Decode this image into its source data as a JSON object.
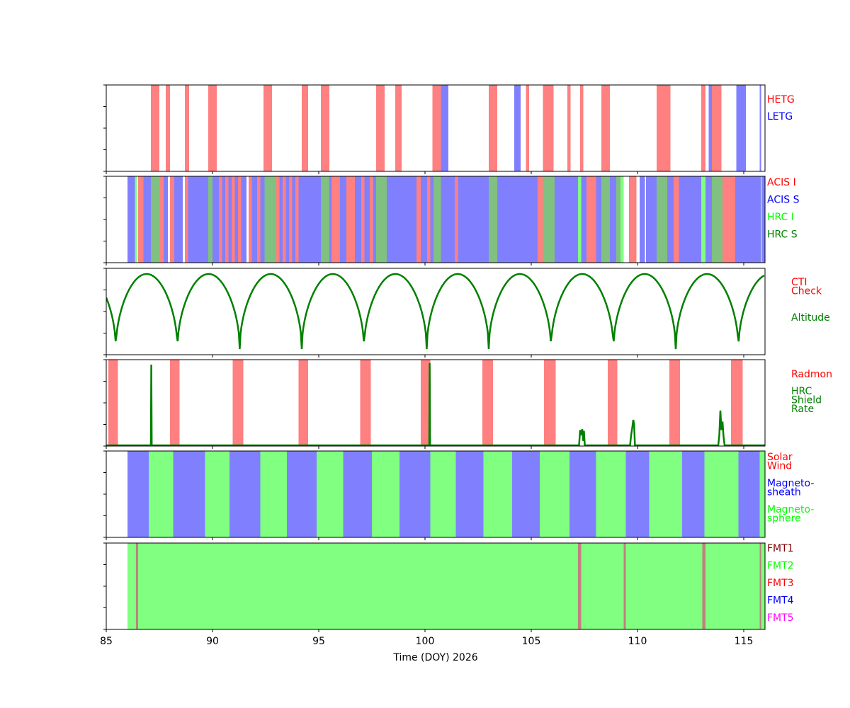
{
  "chart_data": {
    "type": "area",
    "title": "",
    "xlabel": "Time (DOY) 2026",
    "xlim": [
      85,
      116
    ],
    "xticks": [
      85,
      90,
      95,
      100,
      105,
      110,
      115
    ],
    "panels": [
      {
        "id": "grating",
        "legend": [
          {
            "label": "HETG",
            "color": "#ff0000"
          },
          {
            "label": "LETG",
            "color": "#0000ff"
          }
        ],
        "series": [
          {
            "name": "HETG",
            "color": "#ff8080",
            "intervals": [
              [
                87.1,
                87.5
              ],
              [
                87.8,
                88.0
              ],
              [
                88.7,
                88.9
              ],
              [
                89.8,
                90.2
              ],
              [
                92.4,
                92.8
              ],
              [
                94.2,
                94.5
              ],
              [
                95.1,
                95.5
              ],
              [
                97.7,
                98.1
              ],
              [
                98.6,
                98.9
              ],
              [
                100.35,
                100.75
              ],
              [
                103.0,
                103.4
              ],
              [
                104.75,
                104.9
              ],
              [
                105.55,
                106.05
              ],
              [
                106.7,
                106.85
              ],
              [
                107.3,
                107.45
              ],
              [
                108.3,
                108.7
              ],
              [
                110.9,
                111.55
              ],
              [
                113.0,
                113.2
              ],
              [
                113.5,
                113.95
              ]
            ]
          },
          {
            "name": "LETG",
            "color": "#8080ff",
            "intervals": [
              [
                100.75,
                101.1
              ],
              [
                104.2,
                104.5
              ],
              [
                113.35,
                113.5
              ],
              [
                114.65,
                115.1
              ],
              [
                115.75,
                115.82
              ]
            ]
          }
        ]
      },
      {
        "id": "instrument",
        "legend": [
          {
            "label": "ACIS I",
            "color": "#ff0000"
          },
          {
            "label": "ACIS S",
            "color": "#0000ff"
          },
          {
            "label": "HRC I",
            "color": "#00ff00"
          },
          {
            "label": "HRC S",
            "color": "#008000"
          }
        ],
        "series": [
          {
            "name": "ACIS I",
            "color": "#ff8080",
            "intervals": [
              [
                86.5,
                86.75
              ],
              [
                87.5,
                87.7
              ],
              [
                88.0,
                88.2
              ],
              [
                88.7,
                88.85
              ],
              [
                90.3,
                90.45
              ],
              [
                90.6,
                90.75
              ],
              [
                90.9,
                91.05
              ],
              [
                91.2,
                91.35
              ],
              [
                91.7,
                91.85
              ],
              [
                92.1,
                92.25
              ],
              [
                93.0,
                93.15
              ],
              [
                93.3,
                93.45
              ],
              [
                93.6,
                93.75
              ],
              [
                93.9,
                94.05
              ],
              [
                95.6,
                96.0
              ],
              [
                96.3,
                96.7
              ],
              [
                97.0,
                97.15
              ],
              [
                97.4,
                97.55
              ],
              [
                99.6,
                99.8
              ],
              [
                100.1,
                100.25
              ],
              [
                101.4,
                101.55
              ],
              [
                105.3,
                105.55
              ],
              [
                107.6,
                108.05
              ],
              [
                109.6,
                109.95
              ],
              [
                111.7,
                111.95
              ],
              [
                114.0,
                114.6
              ]
            ]
          },
          {
            "name": "ACIS S",
            "color": "#8080ff",
            "intervals": [
              [
                86.0,
                86.35
              ],
              [
                86.75,
                87.1
              ],
              [
                87.7,
                87.9
              ],
              [
                88.2,
                88.6
              ],
              [
                88.85,
                89.8
              ],
              [
                90.0,
                90.3
              ],
              [
                90.45,
                90.6
              ],
              [
                90.75,
                90.9
              ],
              [
                91.05,
                91.2
              ],
              [
                91.35,
                91.6
              ],
              [
                91.85,
                92.1
              ],
              [
                92.25,
                92.45
              ],
              [
                93.15,
                93.3
              ],
              [
                93.45,
                93.6
              ],
              [
                93.75,
                93.9
              ],
              [
                94.05,
                95.1
              ],
              [
                95.5,
                95.6
              ],
              [
                96.0,
                96.3
              ],
              [
                96.7,
                97.0
              ],
              [
                97.15,
                97.4
              ],
              [
                97.55,
                97.7
              ],
              [
                98.2,
                99.6
              ],
              [
                99.8,
                100.1
              ],
              [
                100.25,
                100.4
              ],
              [
                100.75,
                101.4
              ],
              [
                101.55,
                103.0
              ],
              [
                103.4,
                105.3
              ],
              [
                106.1,
                107.2
              ],
              [
                107.35,
                107.6
              ],
              [
                108.05,
                108.3
              ],
              [
                108.7,
                109.0
              ],
              [
                110.1,
                110.35
              ],
              [
                110.4,
                110.9
              ],
              [
                111.4,
                111.7
              ],
              [
                111.95,
                113.0
              ],
              [
                113.2,
                113.5
              ],
              [
                114.6,
                115.8
              ],
              [
                115.85,
                116.0
              ]
            ]
          },
          {
            "name": "HRC I",
            "color": "#80ff80",
            "intervals": [
              [
                86.35,
                86.45
              ],
              [
                107.2,
                107.35
              ],
              [
                109.2,
                109.35
              ],
              [
                113.0,
                113.2
              ],
              [
                115.8,
                115.85
              ]
            ]
          },
          {
            "name": "HRC S",
            "color": "#80c080",
            "intervals": [
              [
                87.1,
                87.5
              ],
              [
                89.8,
                90.0
              ],
              [
                92.45,
                93.0
              ],
              [
                95.1,
                95.5
              ],
              [
                97.7,
                98.2
              ],
              [
                100.4,
                100.75
              ],
              [
                103.0,
                103.4
              ],
              [
                105.55,
                106.1
              ],
              [
                108.3,
                108.7
              ],
              [
                109.0,
                109.2
              ],
              [
                110.9,
                111.4
              ],
              [
                113.5,
                114.0
              ]
            ]
          }
        ]
      },
      {
        "id": "orbit",
        "legend": [
          {
            "label": "CTI Check",
            "color": "#ff0000"
          },
          {
            "label": "Altitude",
            "color": "#008000"
          }
        ],
        "curve": {
          "name": "Altitude",
          "color": "#008000",
          "perigees": [
            85.45,
            88.35,
            91.28,
            94.2,
            97.13,
            100.08,
            103.0,
            105.93,
            108.87,
            111.8,
            114.75
          ],
          "start": 0.55,
          "end": 0.98
        }
      },
      {
        "id": "radiation",
        "legend": [
          {
            "label": "Radmon",
            "color": "#ff0000"
          },
          {
            "label": "HRC Shield Rate",
            "color": "#008000"
          }
        ],
        "series": [
          {
            "name": "Radmon",
            "color": "#ff8080",
            "intervals": [
              [
                85.1,
                85.55
              ],
              [
                88.0,
                88.45
              ],
              [
                90.95,
                91.45
              ],
              [
                94.05,
                94.5
              ],
              [
                96.95,
                97.45
              ],
              [
                99.8,
                100.25
              ],
              [
                102.7,
                103.2
              ],
              [
                105.6,
                106.15
              ],
              [
                108.6,
                109.05
              ],
              [
                111.5,
                112.0
              ],
              [
                114.4,
                114.95
              ]
            ]
          }
        ],
        "spikes": {
          "color": "#008000",
          "points": [
            [
              87.1,
              0.0
            ],
            [
              87.12,
              0.95
            ],
            [
              87.14,
              0.0
            ],
            [
              100.2,
              0.0
            ],
            [
              100.22,
              0.97
            ],
            [
              100.24,
              0.0
            ],
            [
              107.25,
              0.0
            ],
            [
              107.3,
              0.18
            ],
            [
              107.35,
              0.12
            ],
            [
              107.4,
              0.19
            ],
            [
              107.45,
              0.05
            ],
            [
              107.48,
              0.17
            ],
            [
              107.52,
              0.0
            ],
            [
              109.65,
              0.0
            ],
            [
              109.7,
              0.12
            ],
            [
              109.75,
              0.2
            ],
            [
              109.8,
              0.3
            ],
            [
              109.84,
              0.25
            ],
            [
              109.88,
              0.0
            ],
            [
              113.8,
              0.0
            ],
            [
              113.85,
              0.12
            ],
            [
              113.9,
              0.41
            ],
            [
              113.95,
              0.18
            ],
            [
              114.0,
              0.28
            ],
            [
              114.05,
              0.1
            ],
            [
              114.1,
              0.0
            ]
          ]
        }
      },
      {
        "id": "region",
        "legend": [
          {
            "label": "Solar Wind",
            "color": "#ff0000"
          },
          {
            "label": "Magneto- sheath",
            "color": "#0000ff"
          },
          {
            "label": "Magneto- sphere",
            "color": "#00ff00"
          }
        ],
        "series": [
          {
            "name": "Magneto- sheath",
            "color": "#8080ff",
            "intervals": [
              [
                86.0,
                87.0
              ],
              [
                88.15,
                89.65
              ],
              [
                90.8,
                92.25
              ],
              [
                93.5,
                94.9
              ],
              [
                96.15,
                97.5
              ],
              [
                98.8,
                100.25
              ],
              [
                101.45,
                102.75
              ],
              [
                104.1,
                105.4
              ],
              [
                106.8,
                108.05
              ],
              [
                109.45,
                110.55
              ],
              [
                112.1,
                113.15
              ],
              [
                114.75,
                115.75
              ]
            ]
          },
          {
            "name": "Magneto- sphere",
            "color": "#80ff80",
            "intervals": [
              [
                87.0,
                88.15
              ],
              [
                89.65,
                90.8
              ],
              [
                92.25,
                93.5
              ],
              [
                94.9,
                96.15
              ],
              [
                97.5,
                98.8
              ],
              [
                100.25,
                101.45
              ],
              [
                102.75,
                104.1
              ],
              [
                105.4,
                106.8
              ],
              [
                108.05,
                109.45
              ],
              [
                110.55,
                112.1
              ],
              [
                113.15,
                114.75
              ],
              [
                115.75,
                116.0
              ]
            ]
          }
        ]
      },
      {
        "id": "format",
        "legend": [
          {
            "label": "FMT1",
            "color": "#800000"
          },
          {
            "label": "FMT2",
            "color": "#00ff00"
          },
          {
            "label": "FMT3",
            "color": "#ff0000"
          },
          {
            "label": "FMT4",
            "color": "#0000ff"
          },
          {
            "label": "FMT5",
            "color": "#ff00ff"
          }
        ],
        "series": [
          {
            "name": "FMT2",
            "color": "#80ff80",
            "intervals": [
              [
                86.0,
                116.0
              ]
            ]
          },
          {
            "name": "FMT1",
            "color": "#c08080",
            "intervals": [
              [
                86.4,
                86.5
              ],
              [
                107.2,
                107.35
              ],
              [
                109.35,
                109.45
              ],
              [
                113.05,
                113.2
              ],
              [
                115.75,
                115.82
              ]
            ]
          }
        ]
      }
    ]
  }
}
